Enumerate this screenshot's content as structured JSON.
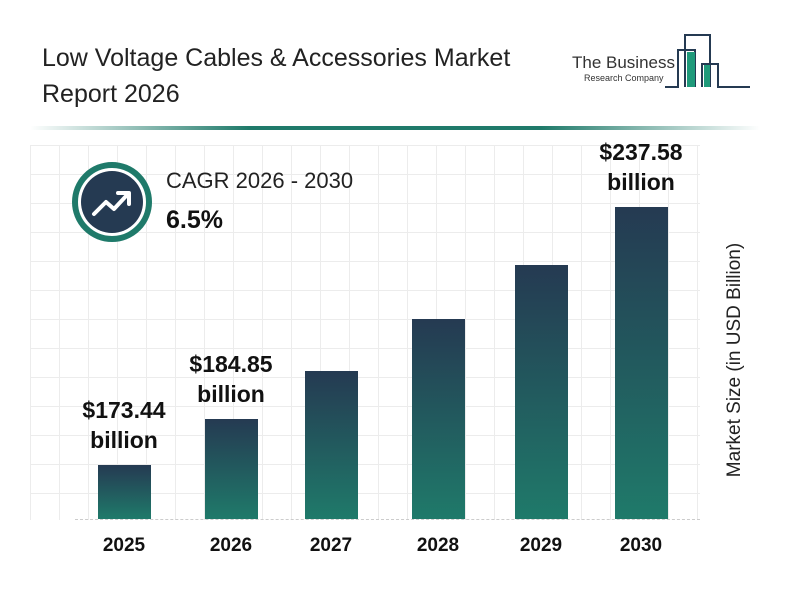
{
  "header": {
    "title": "Low Voltage Cables & Accessories Market Report 2026",
    "logo_text": [
      "The Business",
      "Research Company"
    ]
  },
  "cagr": {
    "label": "CAGR 2026 - 2030",
    "value": "6.5%",
    "icon": "trending-up-icon"
  },
  "colors": {
    "bar_top": "#253a52",
    "bar_bottom": "#1f7a6a",
    "accent": "#1f7a6a"
  },
  "chart_data": {
    "type": "bar",
    "categories": [
      "2025",
      "2026",
      "2027",
      "2028",
      "2029",
      "2030"
    ],
    "values": [
      173.44,
      184.85,
      196.87,
      209.66,
      223.29,
      237.58
    ],
    "data_labels": [
      {
        "index": 0,
        "text": "$173.44",
        "unit": "billion"
      },
      {
        "index": 1,
        "text": "$184.85",
        "unit": "billion"
      },
      {
        "index": 5,
        "text": "$237.58",
        "unit": "billion"
      }
    ],
    "ylabel": "Market Size (in USD Billion)",
    "xlabel": "",
    "grid": true
  }
}
